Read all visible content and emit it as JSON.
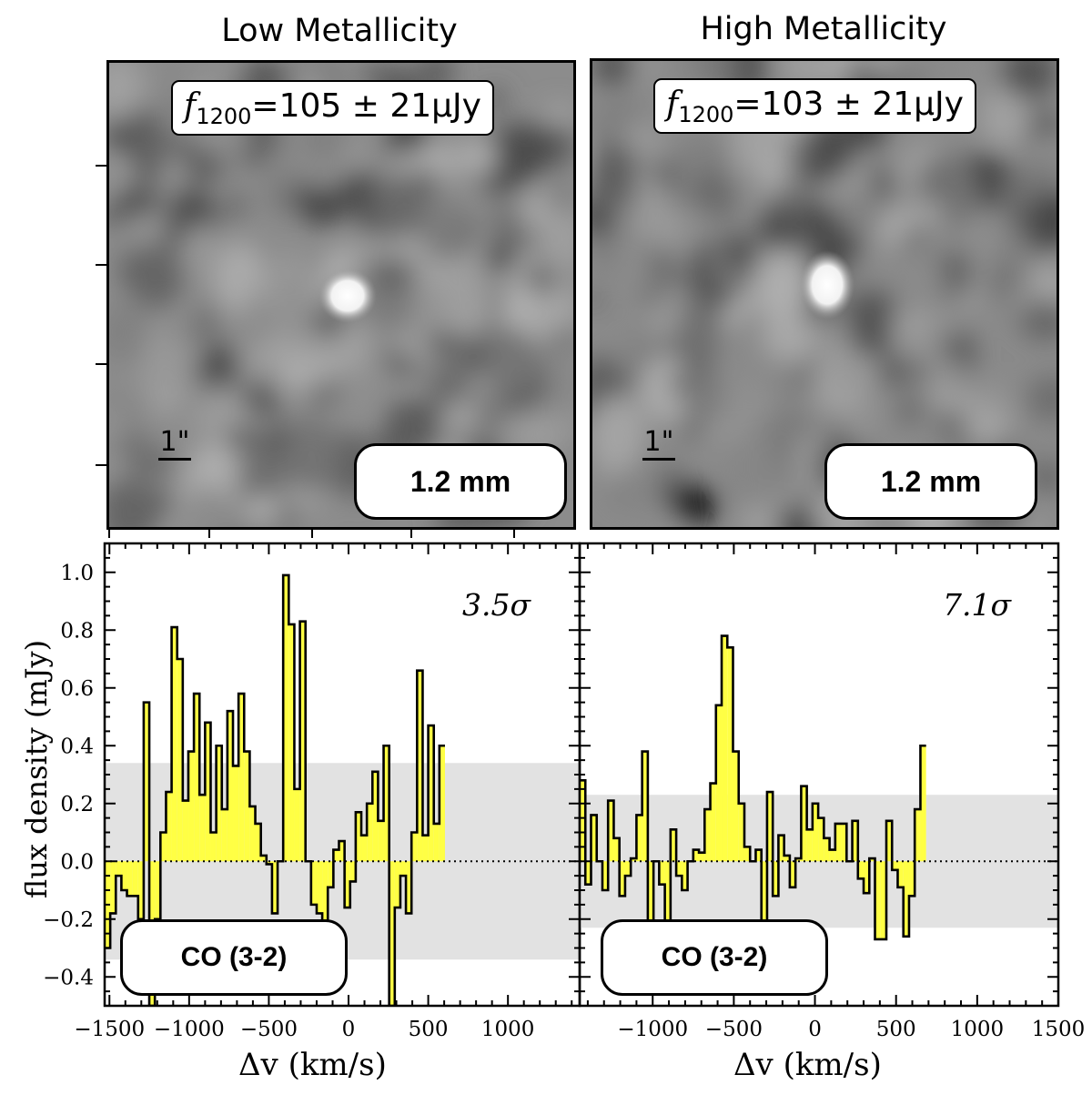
{
  "panels": [
    {
      "title": "Low Metallicity",
      "flux": {
        "symbol": "f",
        "sub": "1200",
        "text": "=105 ± 21μJy"
      },
      "band_label": "1.2 mm",
      "scale_label": "1\"",
      "line_label": "CO (3-2)",
      "significance": "3.5σ"
    },
    {
      "title": "High Metallicity",
      "flux": {
        "symbol": "f",
        "sub": "1200",
        "text": "=103 ± 21μJy"
      },
      "band_label": "1.2 mm",
      "scale_label": "1\"",
      "line_label": "CO (3-2)",
      "significance": "7.1σ"
    }
  ],
  "colors": {
    "fill": "#ffff44",
    "band": "#e2e2e2",
    "axis": "#000000"
  },
  "chart_data": [
    {
      "type": "line",
      "style": "step-filled",
      "title": "CO (3-2) Low Metallicity",
      "xlabel": "Δv (km/s)",
      "ylabel": "flux density (mJy)",
      "xlim": [
        -1530,
        1450
      ],
      "ylim": [
        -0.5,
        1.1
      ],
      "xticks": [
        -1500,
        -1000,
        -500,
        0,
        500,
        1000
      ],
      "xtick_labels": [
        "−1500",
        "−1000",
        "−500",
        "0",
        "500",
        "1000"
      ],
      "yticks": [
        -0.4,
        -0.2,
        0.0,
        0.2,
        0.4,
        0.6,
        0.8,
        1.0
      ],
      "ytick_labels": [
        "−0.4",
        "−0.2",
        "0.0",
        "0.2",
        "0.4",
        "0.6",
        "0.8",
        "1.0"
      ],
      "noise_band": [
        -0.34,
        0.34
      ],
      "bin_width": 35,
      "x_start": -1530,
      "values": [
        -0.3,
        -0.18,
        -0.05,
        -0.1,
        -0.12,
        -0.12,
        -0.2,
        0.55,
        -0.5,
        -0.2,
        0.1,
        0.24,
        0.81,
        0.7,
        0.21,
        0.38,
        0.58,
        0.23,
        0.48,
        0.1,
        0.4,
        0.18,
        0.52,
        0.33,
        0.58,
        0.38,
        0.19,
        0.13,
        0.02,
        -0.01,
        -0.18,
        0.0,
        0.99,
        0.82,
        0.25,
        0.83,
        0.0,
        -0.15,
        -0.18,
        -0.31,
        -0.09,
        0.04,
        0.07,
        -0.16,
        -0.07,
        0.17,
        0.09,
        0.2,
        0.31,
        0.14,
        0.4,
        -0.5,
        -0.16,
        -0.05,
        -0.18,
        0.1,
        0.66,
        0.09,
        0.47,
        0.13,
        0.4
      ]
    },
    {
      "type": "line",
      "style": "step-filled",
      "title": "CO (3-2) High Metallicity",
      "xlabel": "Δv (km/s)",
      "ylabel": "",
      "xlim": [
        -1450,
        1500
      ],
      "ylim": [
        -0.5,
        1.1
      ],
      "xticks": [
        -1000,
        -500,
        0,
        500,
        1000,
        1500
      ],
      "xtick_labels": [
        "−1000",
        "−500",
        "0",
        "500",
        "1000",
        "1500"
      ],
      "yticks": [
        -0.4,
        -0.2,
        0.0,
        0.2,
        0.4,
        0.6,
        0.8,
        1.0
      ],
      "noise_band": [
        -0.23,
        0.23
      ],
      "bin_width": 35,
      "x_start": -1450,
      "values": [
        0.28,
        -0.08,
        0.16,
        0.0,
        -0.1,
        0.21,
        0.08,
        -0.12,
        -0.05,
        0.01,
        0.16,
        0.38,
        -0.25,
        0.0,
        -0.08,
        -0.25,
        0.11,
        -0.05,
        -0.1,
        0.0,
        0.04,
        0.03,
        0.18,
        0.27,
        0.54,
        0.78,
        0.74,
        0.38,
        0.2,
        0.05,
        0.0,
        0.04,
        -0.24,
        0.24,
        -0.12,
        0.09,
        0.02,
        -0.09,
        0.01,
        0.26,
        0.11,
        0.2,
        0.15,
        0.08,
        0.04,
        0.13,
        0.13,
        0.0,
        0.14,
        -0.06,
        -0.11,
        0.01,
        -0.27,
        -0.27,
        0.14,
        -0.03,
        -0.09,
        -0.26,
        -0.12,
        0.18,
        0.4
      ]
    }
  ]
}
